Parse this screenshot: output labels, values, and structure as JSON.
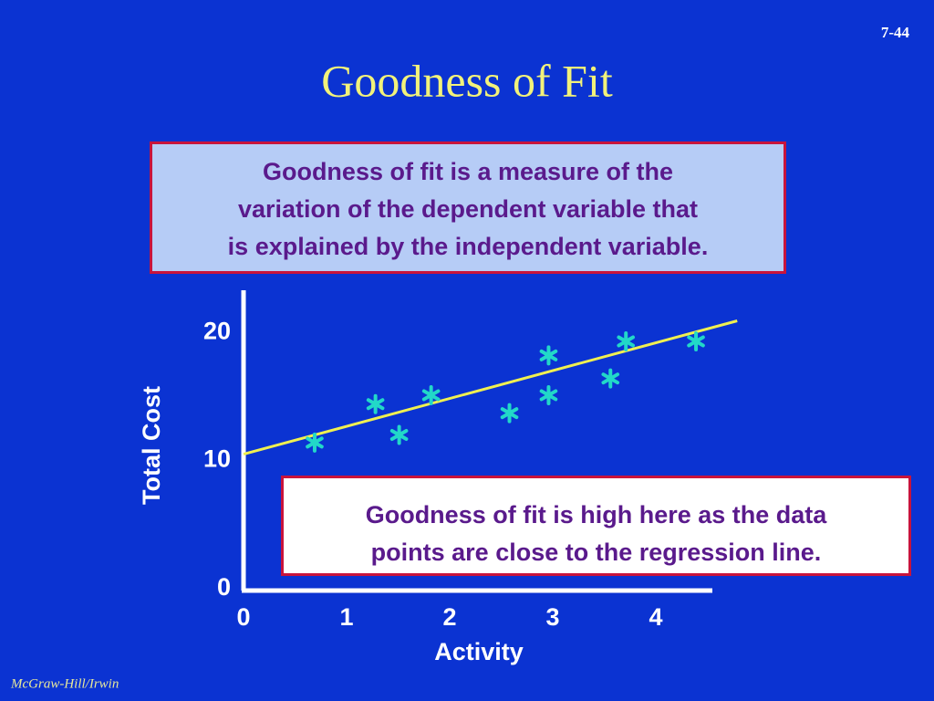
{
  "slide_number": "7-44",
  "title": "Goodness of Fit",
  "definition_box": {
    "lines": [
      "Goodness of fit is a measure of the",
      "variation of the dependent variable that",
      "is explained by the independent variable."
    ]
  },
  "note_box": {
    "lines": [
      "Goodness of fit is high here as the data",
      "points are close to the regression line."
    ]
  },
  "footer": "McGraw-Hill/Irwin",
  "chart_data": {
    "type": "scatter",
    "x_label": "Activity",
    "y_label": "Total Cost",
    "x": [
      0.69,
      1.28,
      1.51,
      1.82,
      2.58,
      2.96,
      2.96,
      3.56,
      3.71,
      4.39
    ],
    "values": [
      11.4,
      14.4,
      12.0,
      15.1,
      13.7,
      18.2,
      15.1,
      16.4,
      19.3,
      19.3
    ],
    "color": "#22d8c8",
    "regression_line": {
      "color": "#f0f050",
      "x": [
        0,
        4.79
      ],
      "y": [
        10.5,
        20.9
      ]
    },
    "xlim": [
      0,
      4.54
    ],
    "ylim": [
      0,
      23
    ],
    "xticks": [
      0,
      1,
      2,
      3,
      4
    ],
    "yticks": [
      0,
      10,
      20
    ],
    "grid": false
  }
}
